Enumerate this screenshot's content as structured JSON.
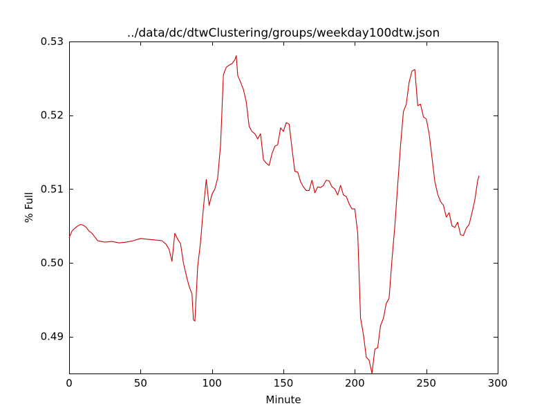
{
  "chart_data": {
    "type": "line",
    "title": "../data/dc/dtwClustering/groups/weekday100dtw.json",
    "xlabel": "Minute",
    "ylabel": "% Full",
    "xlim": [
      0,
      300
    ],
    "ylim": [
      0.485,
      0.53
    ],
    "xticks": [
      0,
      50,
      100,
      150,
      200,
      250,
      300
    ],
    "xtick_labels": [
      "0",
      "50",
      "100",
      "150",
      "200",
      "250",
      "300"
    ],
    "yticks": [
      0.49,
      0.5,
      0.51,
      0.52,
      0.53
    ],
    "ytick_labels": [
      "0.49",
      "0.50",
      "0.51",
      "0.52",
      "0.53"
    ],
    "grid": false,
    "series": [
      {
        "color": "#cc0000",
        "x": [
          0,
          2,
          4,
          6,
          8,
          10,
          12,
          14,
          16,
          18,
          20,
          25,
          30,
          35,
          40,
          45,
          50,
          55,
          60,
          65,
          68,
          70,
          72,
          74,
          76,
          78,
          80,
          82,
          84,
          86,
          87,
          88,
          90,
          92,
          94,
          96,
          98,
          100,
          102,
          104,
          106,
          108,
          110,
          112,
          114,
          116,
          117,
          118,
          120,
          122,
          124,
          126,
          128,
          130,
          132,
          134,
          136,
          138,
          140,
          142,
          144,
          146,
          148,
          150,
          152,
          154,
          156,
          158,
          160,
          162,
          164,
          166,
          168,
          170,
          172,
          174,
          176,
          178,
          180,
          182,
          184,
          186,
          188,
          190,
          192,
          194,
          196,
          198,
          200,
          202,
          204,
          206,
          208,
          210,
          212,
          214,
          216,
          218,
          220,
          222,
          224,
          226,
          228,
          230,
          232,
          234,
          236,
          238,
          240,
          242,
          244,
          246,
          248,
          250,
          252,
          254,
          256,
          258,
          260,
          262,
          264,
          266,
          268,
          270,
          272,
          274,
          276,
          278,
          280,
          282,
          284,
          286,
          287
        ],
        "y": [
          0.5034,
          0.5043,
          0.5047,
          0.505,
          0.5052,
          0.5051,
          0.5048,
          0.5043,
          0.504,
          0.5035,
          0.503,
          0.5028,
          0.5029,
          0.5027,
          0.5028,
          0.503,
          0.5033,
          0.5032,
          0.5031,
          0.503,
          0.5025,
          0.5018,
          0.5002,
          0.504,
          0.5032,
          0.5026,
          0.5,
          0.4983,
          0.4968,
          0.4958,
          0.4923,
          0.4921,
          0.4995,
          0.5028,
          0.5075,
          0.5113,
          0.5078,
          0.5093,
          0.51,
          0.5115,
          0.516,
          0.5255,
          0.5265,
          0.5268,
          0.527,
          0.5275,
          0.5281,
          0.5254,
          0.5245,
          0.5235,
          0.5218,
          0.5185,
          0.5178,
          0.5175,
          0.5168,
          0.5175,
          0.514,
          0.5135,
          0.5132,
          0.5148,
          0.5158,
          0.516,
          0.5183,
          0.5178,
          0.519,
          0.5188,
          0.5155,
          0.5124,
          0.5123,
          0.511,
          0.5103,
          0.5098,
          0.5098,
          0.5112,
          0.5095,
          0.5103,
          0.5102,
          0.5105,
          0.5112,
          0.5111,
          0.5103,
          0.51,
          0.5092,
          0.5105,
          0.5092,
          0.509,
          0.508,
          0.5073,
          0.5073,
          0.504,
          0.4925,
          0.4903,
          0.4872,
          0.4868,
          0.485,
          0.4883,
          0.4885,
          0.4915,
          0.4925,
          0.4945,
          0.4952,
          0.5005,
          0.505,
          0.5105,
          0.516,
          0.5205,
          0.5215,
          0.5245,
          0.526,
          0.5262,
          0.5213,
          0.5215,
          0.5198,
          0.5195,
          0.5175,
          0.5143,
          0.511,
          0.5093,
          0.5083,
          0.5078,
          0.5062,
          0.5068,
          0.505,
          0.5048,
          0.5055,
          0.5038,
          0.5037,
          0.5047,
          0.5052,
          0.5068,
          0.5085,
          0.5112,
          0.5118
        ]
      }
    ]
  }
}
